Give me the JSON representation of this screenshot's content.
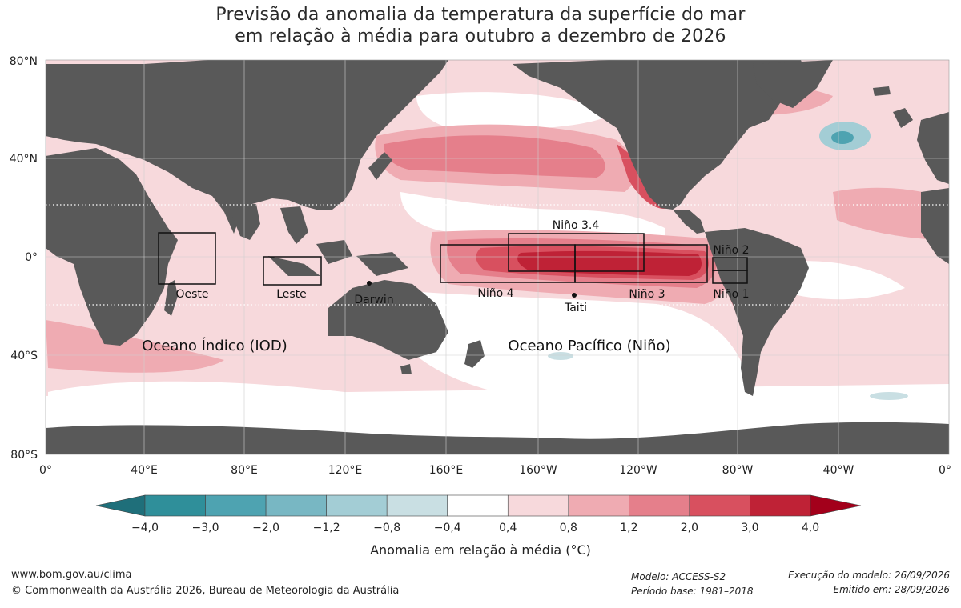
{
  "title": {
    "line1": "Previsão da anomalia da temperatura da superfície do mar",
    "line2": "em relação à média para outubro a dezembro de 2026"
  },
  "axes": {
    "lat_labels": [
      "80°N",
      "40°N",
      "0°",
      "40°S",
      "80°S"
    ],
    "lon_labels": [
      "0°",
      "40°E",
      "80°E",
      "120°E",
      "160°E",
      "160°W",
      "120°W",
      "80°W",
      "40°W",
      "0°"
    ]
  },
  "regions": {
    "nino34": "Niño 3.4",
    "nino2": "Niño 2",
    "nino4": "Niño 4",
    "nino3": "Niño 3",
    "nino1": "Niño 1",
    "oeste": "Oeste",
    "leste": "Leste",
    "darwin": "Darwin",
    "taiti": "Taiti"
  },
  "ocean_labels": {
    "indian": "Oceano Índico (IOD)",
    "pacific": "Oceano Pacífico (Niño)"
  },
  "legend": {
    "colors": [
      "#2f8f9a",
      "#4ea3b1",
      "#78b7c3",
      "#a3cdd5",
      "#c9dfe3",
      "#ffffff",
      "#f7d9dc",
      "#efabb2",
      "#e57f8b",
      "#d8505f",
      "#bf2236"
    ],
    "left_arrow_color": "#1f6f7a",
    "right_arrow_color": "#a3001b",
    "tick_labels": [
      "−4,0",
      "−3,0",
      "−2,0",
      "−1,2",
      "−0,8",
      "−0,4",
      "0,4",
      "0,8",
      "1,2",
      "2,0",
      "3,0",
      "4,0"
    ],
    "title": "Anomalia em relação à média (°C)"
  },
  "footer": {
    "url": "www.bom.gov.au/clima",
    "copyright": "© Commonwealth da Austrália 2026, Bureau de Meteorologia da Austrália",
    "model": "Modelo: ACCESS-S2",
    "base_period": "Período base: 1981–2018",
    "run": "Execução do modelo: 26/09/2026",
    "issued": "Emitido em: 28/09/2026"
  },
  "colors": {
    "land": "#595959",
    "warm_light": "#f7d9dc",
    "warm_mid": "#efabb2",
    "warm_strong": "#e57f8b",
    "warm_hot": "#d8505f",
    "warm_max": "#bf2236",
    "cool": "#a3cdd5"
  }
}
